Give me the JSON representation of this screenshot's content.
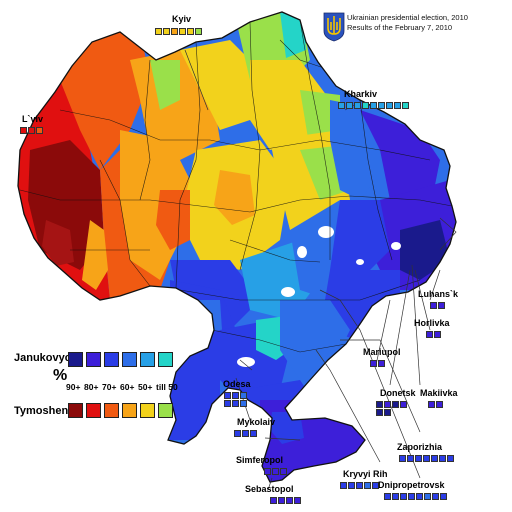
{
  "header": {
    "line1": "Ukrainian presidential election, 2010",
    "line2": "Results of the February 7, 2010"
  },
  "legend": {
    "candidate_a": "Janukovych",
    "candidate_b": "Tymoshenko",
    "percent_sign": "%",
    "bins": [
      "90+",
      "80+",
      "70+",
      "60+",
      "50+",
      "till 50"
    ],
    "colors_a": [
      "#1a1a8c",
      "#3d1fd9",
      "#2b3de6",
      "#2e6ee8",
      "#27a0e6",
      "#24d4c8"
    ],
    "colors_b": [
      "#8b0a0a",
      "#e01010",
      "#f05a12",
      "#f7a418",
      "#f2d21c",
      "#9ae04a"
    ]
  },
  "cities": {
    "kyiv": {
      "label": "Kyiv",
      "colors": [
        "#f2d21c",
        "#f2d21c",
        "#f7a418",
        "#f2d21c",
        "#f2d21c",
        "#9ae04a"
      ]
    },
    "lviv": {
      "label": "L`viv",
      "colors": [
        "#e01010",
        "#e01010",
        "#f05a12"
      ]
    },
    "kharkiv": {
      "label": "Kharkiv",
      "colors": [
        "#27a0e6",
        "#27a0e6",
        "#27a0e6",
        "#24d4c8",
        "#27a0e6",
        "#27a0e6",
        "#27a0e6",
        "#27a0e6",
        "#24d4c8"
      ]
    },
    "luhansk": {
      "label": "Luhans`k",
      "colors": [
        "#3d1fd9",
        "#3d1fd9"
      ]
    },
    "horlivka": {
      "label": "Horlivka",
      "colors": [
        "#3d1fd9",
        "#3d1fd9"
      ]
    },
    "mariupol": {
      "label": "Mariupol",
      "colors": [
        "#3d1fd9",
        "#3d1fd9"
      ]
    },
    "donetsk": {
      "label": "Donetsk",
      "colors": [
        "#1a1a8c",
        "#3d1fd9",
        "#1a1a8c",
        "#3d1fd9",
        "#1a1a8c",
        "#1a1a8c"
      ]
    },
    "makiivka": {
      "label": "Makiivka",
      "colors": [
        "#3d1fd9",
        "#3d1fd9"
      ]
    },
    "odesa": {
      "label": "Odesa",
      "colors": [
        "#2b3de6",
        "#2b3de6",
        "#2e6ee8",
        "#2b3de6",
        "#2b3de6",
        "#2e6ee8"
      ]
    },
    "mykolaiv": {
      "label": "Mykolaiv",
      "colors": [
        "#2b3de6",
        "#2b3de6",
        "#2b3de6"
      ]
    },
    "simferopol": {
      "label": "Simferopol",
      "colors": [
        "#3d1fd9",
        "#3d1fd9",
        "#3d1fd9"
      ]
    },
    "sebastopol": {
      "label": "Sebastopol",
      "colors": [
        "#3d1fd9",
        "#3d1fd9",
        "#3d1fd9",
        "#3d1fd9"
      ]
    },
    "zaporizhia": {
      "label": "Zaporizhia",
      "colors": [
        "#2b3de6",
        "#2b3de6",
        "#2b3de6",
        "#2b3de6",
        "#2b3de6",
        "#2b3de6",
        "#2b3de6"
      ]
    },
    "kryvyi_rih": {
      "label": "Kryvyi Rih",
      "colors": [
        "#2b3de6",
        "#2b3de6",
        "#2b3de6",
        "#2e6ee8",
        "#2b3de6"
      ]
    },
    "dnipropetrovsk": {
      "label": "Dnipropetrovsk",
      "colors": [
        "#2b3de6",
        "#2b3de6",
        "#2b3de6",
        "#2b3de6",
        "#2b3de6",
        "#2e6ee8",
        "#2b3de6",
        "#2b3de6"
      ]
    }
  }
}
